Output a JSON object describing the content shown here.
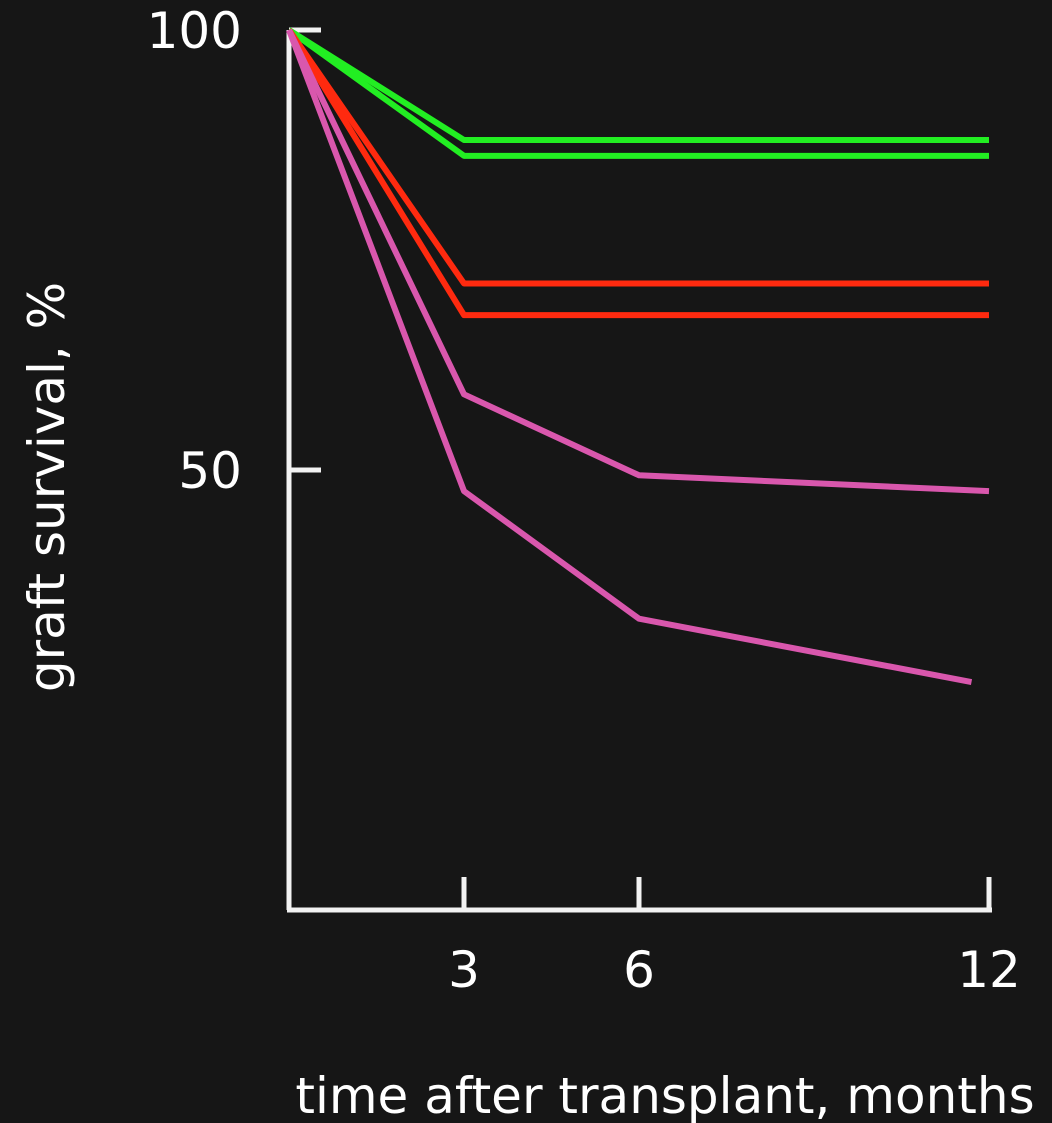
{
  "chart_data": {
    "type": "line",
    "title": "",
    "xlabel": "time after transplant, months",
    "ylabel": "graft survival, %",
    "x_ticks": [
      {
        "value": 3,
        "label": "3"
      },
      {
        "value": 6,
        "label": "6"
      },
      {
        "value": 12,
        "label": "12"
      }
    ],
    "y_ticks": [
      {
        "value": 50,
        "label": "50"
      },
      {
        "value": 100,
        "label": "100"
      }
    ],
    "grid": false,
    "legend": "none",
    "series": [
      {
        "color": "#22ee22",
        "points": [
          [
            0,
            100
          ],
          [
            3,
            87.5
          ],
          [
            12,
            87.5
          ]
        ]
      },
      {
        "color": "#22ee22",
        "points": [
          [
            0,
            100
          ],
          [
            3,
            85.7
          ],
          [
            12,
            85.7
          ]
        ]
      },
      {
        "color": "#ff2a0f",
        "points": [
          [
            0,
            100
          ],
          [
            3,
            71.2
          ],
          [
            12,
            71.2
          ]
        ]
      },
      {
        "color": "#ff2a0f",
        "points": [
          [
            0,
            100
          ],
          [
            3,
            67.6
          ],
          [
            12,
            67.6
          ]
        ]
      },
      {
        "color": "#d957ad",
        "points": [
          [
            0,
            100
          ],
          [
            3,
            58.6
          ],
          [
            6,
            49.4
          ],
          [
            12,
            47.6
          ]
        ]
      },
      {
        "color": "#d957ad",
        "points": [
          [
            0,
            100
          ],
          [
            3,
            47.6
          ],
          [
            6,
            33.1
          ],
          [
            11.7,
            25.9
          ]
        ]
      }
    ]
  }
}
